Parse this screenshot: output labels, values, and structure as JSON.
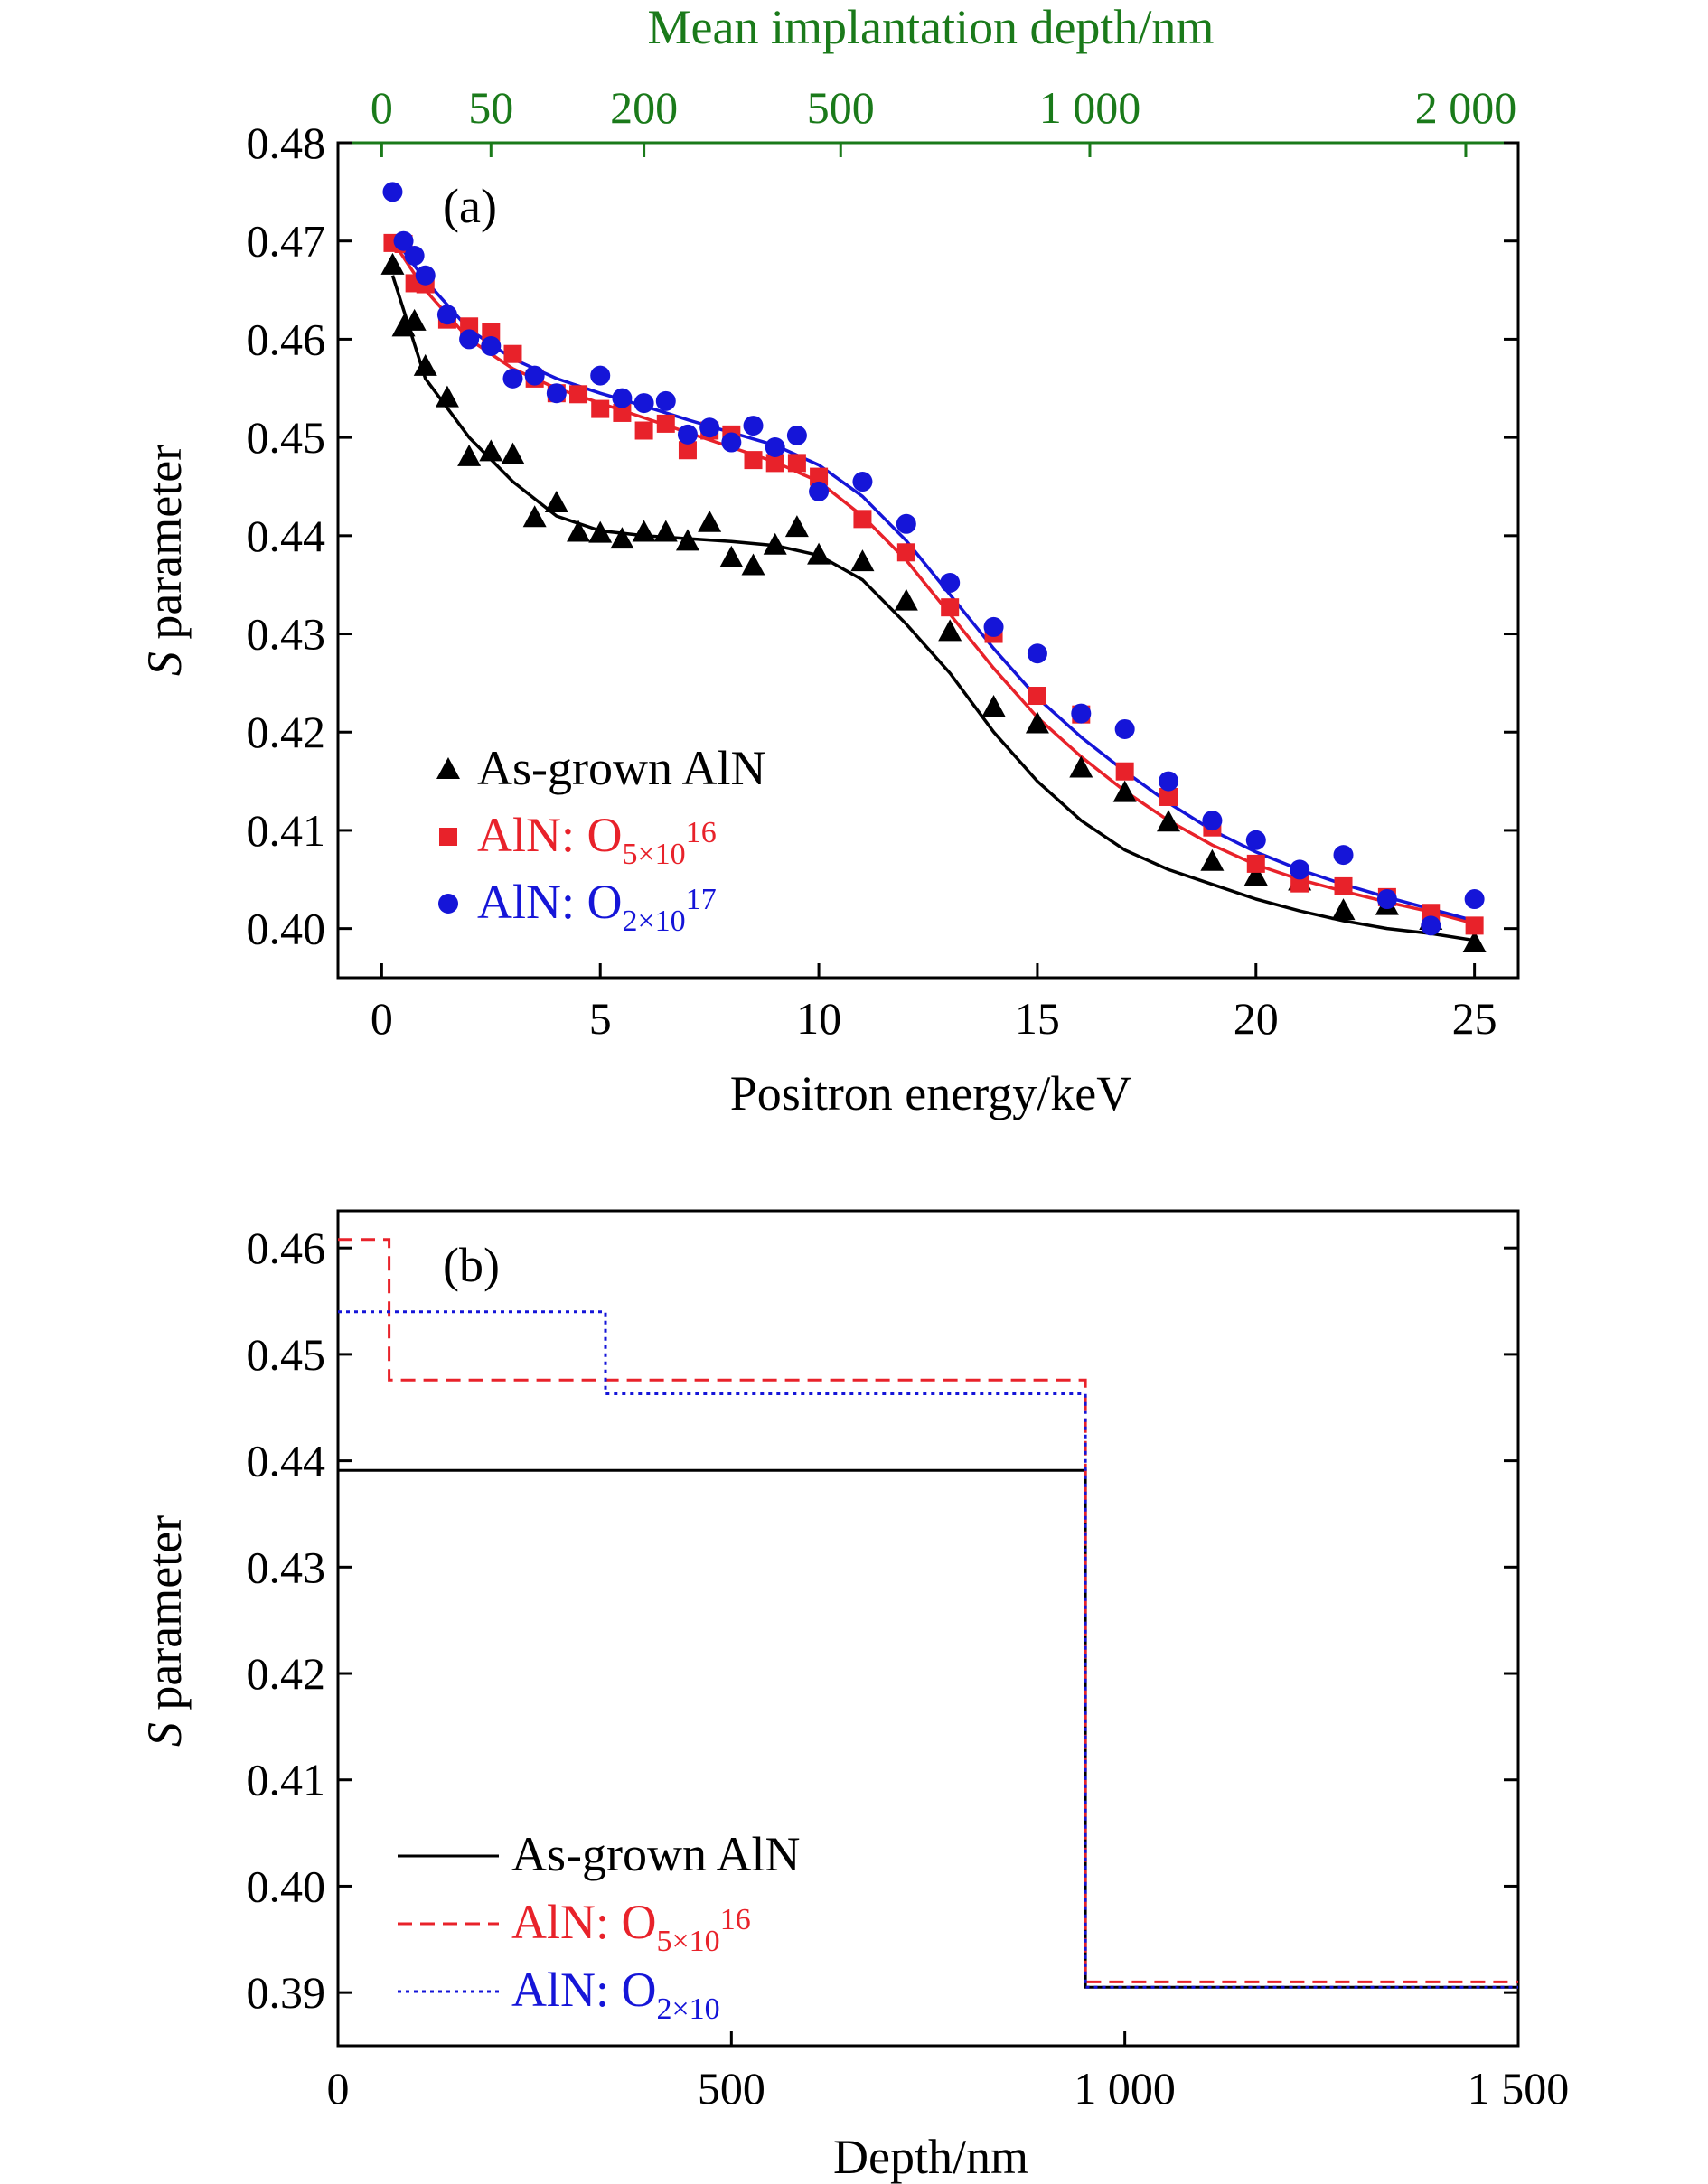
{
  "chart_data": [
    {
      "type": "scatter",
      "panel_label": "(a)",
      "xlabel": "Positron energy/keV",
      "ylabel_italic": "S",
      "ylabel_rest": " parameter",
      "x_ticks": [
        "0",
        "5",
        "10",
        "15",
        "20",
        "25"
      ],
      "y_ticks": [
        "0.40",
        "0.41",
        "0.42",
        "0.43",
        "0.44",
        "0.45",
        "0.46",
        "0.47",
        "0.48"
      ],
      "xlim": [
        -1,
        26
      ],
      "ylim": [
        0.395,
        0.48
      ],
      "top_axis": {
        "label": "Mean implantation depth/nm",
        "color": "#1a7a1a",
        "ticks": [
          {
            "label": "0",
            "energy": 0
          },
          {
            "label": "50",
            "energy": 2.5
          },
          {
            "label": "200",
            "energy": 6
          },
          {
            "label": "500",
            "energy": 10.5
          },
          {
            "label": "1 000",
            "energy": 16.2
          },
          {
            "label": "2 000",
            "energy": 24.8
          }
        ]
      },
      "legend_position": "bottom-left",
      "series": [
        {
          "name": "As-grown AlN",
          "sub": "",
          "sup": "",
          "color": "#000000",
          "marker": "triangle",
          "points": [
            [
              0.25,
              0.4675
            ],
            [
              0.5,
              0.4612
            ],
            [
              0.75,
              0.4618
            ],
            [
              1,
              0.4572
            ],
            [
              1.5,
              0.454
            ],
            [
              2,
              0.448
            ],
            [
              2.5,
              0.4485
            ],
            [
              3,
              0.4482
            ],
            [
              3.5,
              0.4418
            ],
            [
              4,
              0.4433
            ],
            [
              4.5,
              0.4403
            ],
            [
              5,
              0.4402
            ],
            [
              5.5,
              0.4396
            ],
            [
              6,
              0.4403
            ],
            [
              6.5,
              0.4403
            ],
            [
              7,
              0.4394
            ],
            [
              7.5,
              0.4413
            ],
            [
              8,
              0.4377
            ],
            [
              8.5,
              0.4369
            ],
            [
              9,
              0.439
            ],
            [
              9.5,
              0.4408
            ],
            [
              10,
              0.438
            ],
            [
              11,
              0.4373
            ],
            [
              12,
              0.4333
            ],
            [
              13,
              0.4302
            ],
            [
              14,
              0.4225
            ],
            [
              15,
              0.4208
            ],
            [
              16,
              0.4163
            ],
            [
              17,
              0.4138
            ],
            [
              18,
              0.4108
            ],
            [
              19,
              0.4068
            ],
            [
              20,
              0.4053
            ],
            [
              21,
              0.4048
            ],
            [
              22,
              0.4018
            ],
            [
              23,
              0.4023
            ],
            [
              24,
              0.4008
            ],
            [
              25,
              0.3985
            ]
          ],
          "fit": [
            [
              0.25,
              0.4665
            ],
            [
              1,
              0.456
            ],
            [
              2,
              0.45
            ],
            [
              3,
              0.4455
            ],
            [
              4,
              0.442
            ],
            [
              5,
              0.4405
            ],
            [
              6,
              0.44
            ],
            [
              7,
              0.4397
            ],
            [
              8,
              0.4394
            ],
            [
              9,
              0.439
            ],
            [
              10,
              0.438
            ],
            [
              11,
              0.4355
            ],
            [
              12,
              0.431
            ],
            [
              13,
              0.426
            ],
            [
              14,
              0.42
            ],
            [
              15,
              0.415
            ],
            [
              16,
              0.411
            ],
            [
              17,
              0.408
            ],
            [
              18,
              0.406
            ],
            [
              19,
              0.4045
            ],
            [
              20,
              0.403
            ],
            [
              21,
              0.4018
            ],
            [
              22,
              0.4008
            ],
            [
              23,
              0.4
            ],
            [
              24,
              0.3995
            ],
            [
              25,
              0.3988
            ]
          ]
        },
        {
          "name": "AlN: O",
          "sub": "5×10",
          "sup": "16",
          "color": "#e8222a",
          "marker": "square",
          "points": [
            [
              0.25,
              0.4698
            ],
            [
              0.5,
              0.4697
            ],
            [
              0.75,
              0.4657
            ],
            [
              1,
              0.4656
            ],
            [
              1.5,
              0.462
            ],
            [
              2,
              0.4613
            ],
            [
              2.5,
              0.4607
            ],
            [
              3,
              0.4585
            ],
            [
              3.5,
              0.456
            ],
            [
              4,
              0.4545
            ],
            [
              4.5,
              0.4544
            ],
            [
              5,
              0.4529
            ],
            [
              5.5,
              0.4525
            ],
            [
              6,
              0.4507
            ],
            [
              6.5,
              0.4514
            ],
            [
              7,
              0.4487
            ],
            [
              7.5,
              0.4507
            ],
            [
              8,
              0.4503
            ],
            [
              8.5,
              0.4477
            ],
            [
              9,
              0.4474
            ],
            [
              9.5,
              0.4474
            ],
            [
              10,
              0.446
            ],
            [
              11,
              0.4417
            ],
            [
              12,
              0.4383
            ],
            [
              13,
              0.4327
            ],
            [
              14,
              0.43
            ],
            [
              15,
              0.4237
            ],
            [
              16,
              0.4218
            ],
            [
              17,
              0.416
            ],
            [
              18,
              0.4134
            ],
            [
              19,
              0.4103
            ],
            [
              20,
              0.4066
            ],
            [
              21,
              0.4046
            ],
            [
              22,
              0.4043
            ],
            [
              23,
              0.4032
            ],
            [
              24,
              0.4016
            ],
            [
              25,
              0.4003
            ]
          ],
          "fit": [
            [
              0.25,
              0.47
            ],
            [
              1,
              0.465
            ],
            [
              2,
              0.46
            ],
            [
              3,
              0.457
            ],
            [
              4,
              0.455
            ],
            [
              5,
              0.4535
            ],
            [
              6,
              0.452
            ],
            [
              7,
              0.4505
            ],
            [
              8,
              0.449
            ],
            [
              9,
              0.4475
            ],
            [
              10,
              0.4455
            ],
            [
              11,
              0.442
            ],
            [
              12,
              0.4375
            ],
            [
              13,
              0.432
            ],
            [
              14,
              0.4265
            ],
            [
              15,
              0.4215
            ],
            [
              16,
              0.4175
            ],
            [
              17,
              0.414
            ],
            [
              18,
              0.411
            ],
            [
              19,
              0.4085
            ],
            [
              20,
              0.4065
            ],
            [
              21,
              0.405
            ],
            [
              22,
              0.4038
            ],
            [
              23,
              0.4027
            ],
            [
              24,
              0.4017
            ],
            [
              25,
              0.4005
            ]
          ]
        },
        {
          "name": "AlN: O",
          "sub": "2×10",
          "sup": "17",
          "color": "#1515d8",
          "marker": "circle",
          "points": [
            [
              0.25,
              0.475
            ],
            [
              0.5,
              0.47
            ],
            [
              0.75,
              0.4685
            ],
            [
              1,
              0.4665
            ],
            [
              1.5,
              0.4625
            ],
            [
              2,
              0.46
            ],
            [
              2.5,
              0.4593
            ],
            [
              3,
              0.456
            ],
            [
              3.5,
              0.4563
            ],
            [
              4,
              0.4545
            ],
            [
              5,
              0.4563
            ],
            [
              5.5,
              0.454
            ],
            [
              6,
              0.4535
            ],
            [
              6.5,
              0.4537
            ],
            [
              7,
              0.4503
            ],
            [
              7.5,
              0.451
            ],
            [
              8,
              0.4495
            ],
            [
              8.5,
              0.4512
            ],
            [
              9,
              0.449
            ],
            [
              9.5,
              0.4502
            ],
            [
              10,
              0.4445
            ],
            [
              11,
              0.4455
            ],
            [
              12,
              0.4412
            ],
            [
              13,
              0.4352
            ],
            [
              14,
              0.4307
            ],
            [
              15,
              0.428
            ],
            [
              16,
              0.4219
            ],
            [
              17,
              0.4203
            ],
            [
              18,
              0.415
            ],
            [
              19,
              0.411
            ],
            [
              20,
              0.409
            ],
            [
              21,
              0.406
            ],
            [
              22,
              0.4075
            ],
            [
              23,
              0.403
            ],
            [
              24,
              0.4003
            ],
            [
              25,
              0.403
            ]
          ],
          "fit": [
            [
              0.25,
              0.4705
            ],
            [
              1,
              0.466
            ],
            [
              2,
              0.461
            ],
            [
              3,
              0.458
            ],
            [
              4,
              0.456
            ],
            [
              5,
              0.4545
            ],
            [
              6,
              0.4532
            ],
            [
              7,
              0.4518
            ],
            [
              8,
              0.4505
            ],
            [
              9,
              0.4492
            ],
            [
              10,
              0.4472
            ],
            [
              11,
              0.444
            ],
            [
              12,
              0.4395
            ],
            [
              13,
              0.434
            ],
            [
              14,
              0.4285
            ],
            [
              15,
              0.4235
            ],
            [
              16,
              0.4195
            ],
            [
              17,
              0.416
            ],
            [
              18,
              0.4128
            ],
            [
              19,
              0.41
            ],
            [
              20,
              0.4078
            ],
            [
              21,
              0.406
            ],
            [
              22,
              0.4045
            ],
            [
              23,
              0.4032
            ],
            [
              24,
              0.402
            ],
            [
              25,
              0.4008
            ]
          ]
        }
      ]
    },
    {
      "type": "line",
      "panel_label": "(b)",
      "xlabel": "Depth/nm",
      "ylabel_italic": "S",
      "ylabel_rest": " parameter",
      "x_ticks": [
        {
          "label": "0",
          "value": 0
        },
        {
          "label": "500",
          "value": 500
        },
        {
          "label": "1 000",
          "value": 1000
        },
        {
          "label": "1 500",
          "value": 1500
        }
      ],
      "y_ticks": [
        "0.39",
        "0.40",
        "0.41",
        "0.42",
        "0.43",
        "0.44",
        "0.45",
        "0.46"
      ],
      "xlim": [
        0,
        1500
      ],
      "ylim": [
        0.385,
        0.4635
      ],
      "legend_position": "bottom-left",
      "series": [
        {
          "name": "As-grown AlN",
          "sub": "",
          "sup": "",
          "color": "#000000",
          "dash": "solid",
          "steps": [
            [
              0,
              0.4391
            ],
            [
              950,
              0.4391
            ],
            [
              950,
              0.3905
            ],
            [
              1500,
              0.3905
            ]
          ]
        },
        {
          "name": "AlN: O",
          "sub": "5×10",
          "sup": "16",
          "color": "#e8222a",
          "dash": "dashed",
          "steps": [
            [
              0,
              0.4608
            ],
            [
              65,
              0.4608
            ],
            [
              65,
              0.4476
            ],
            [
              950,
              0.4476
            ],
            [
              950,
              0.391
            ],
            [
              1500,
              0.391
            ]
          ]
        },
        {
          "name": "AlN: O",
          "sub": "2×10",
          "sup": "",
          "color": "#1515d8",
          "dash": "dotted",
          "steps": [
            [
              0,
              0.454
            ],
            [
              340,
              0.454
            ],
            [
              340,
              0.4463
            ],
            [
              950,
              0.4463
            ],
            [
              950,
              0.3905
            ],
            [
              1500,
              0.3905
            ]
          ]
        }
      ]
    }
  ]
}
